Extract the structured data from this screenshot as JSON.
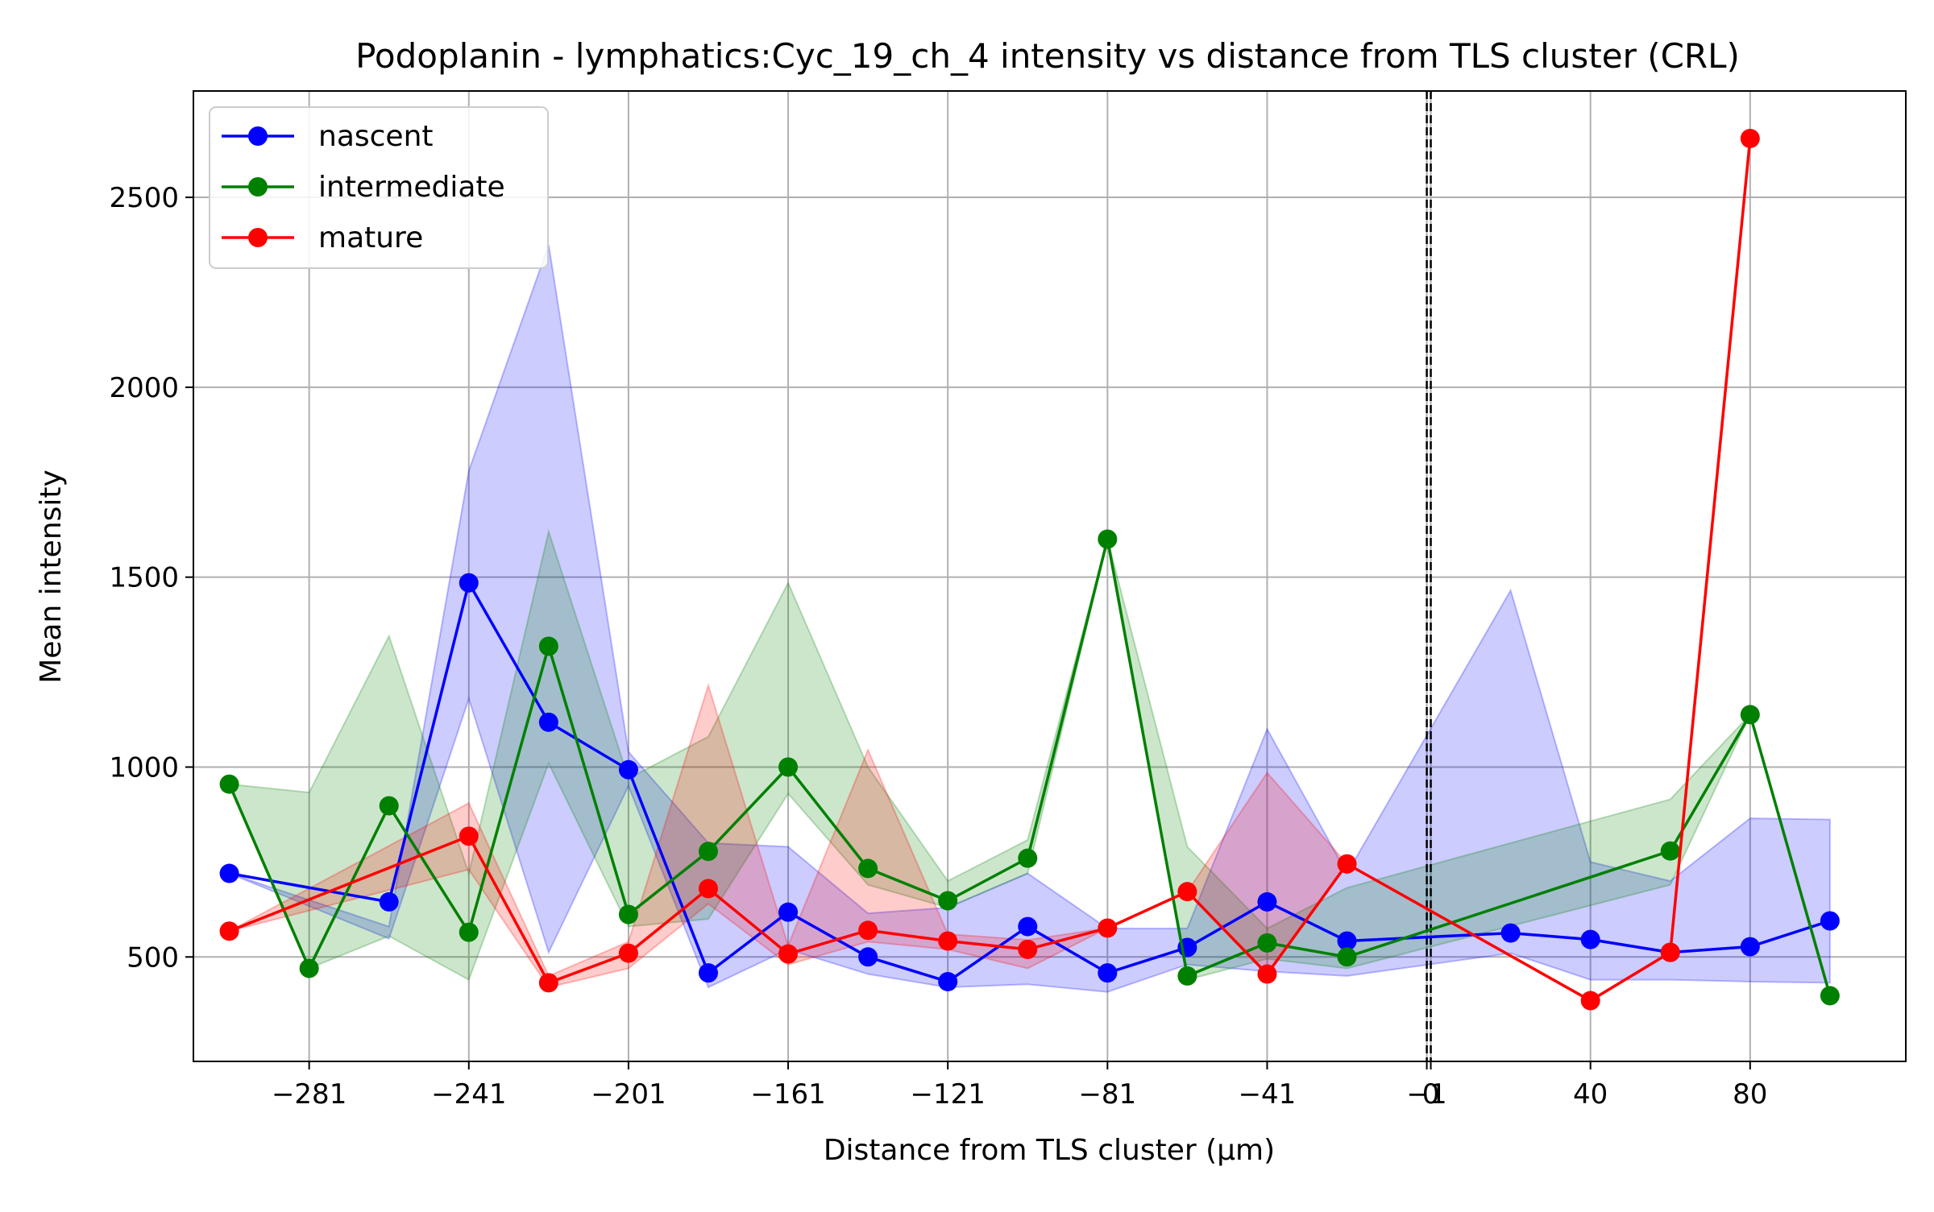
{
  "chart_data": {
    "type": "line",
    "title": "Podoplanin - lymphatics:Cyc_19_ch_4 intensity vs distance from TLS cluster (CRL)",
    "xlabel": "Distance from TLS cluster (μm)",
    "ylabel": "Mean intensity",
    "xlim": [
      -310,
      119
    ],
    "ylim": [
      225,
      2780
    ],
    "x_ticks": [
      -281,
      -241,
      -201,
      -161,
      -121,
      -81,
      -41,
      -1,
      0,
      40,
      80
    ],
    "x_tick_labels": [
      "−281",
      "−241",
      "−201",
      "−161",
      "−121",
      "−81",
      "−41",
      "−1",
      "0",
      "40",
      "80"
    ],
    "y_ticks": [
      500,
      1000,
      1500,
      2000,
      2500
    ],
    "y_tick_labels": [
      "500",
      "1000",
      "1500",
      "2000",
      "2500"
    ],
    "grid": true,
    "legend_position": "top-left",
    "reference_lines": [
      -1,
      0
    ],
    "series": [
      {
        "name": "nascent",
        "color": "#0000ff",
        "x": [
          -301,
          -261,
          -241,
          -221,
          -201,
          -181,
          -161,
          -141,
          -121,
          -101,
          -81,
          -61,
          -41,
          -21,
          20,
          40,
          60,
          80,
          100
        ],
        "values": [
          720,
          645,
          1485,
          1118,
          993,
          458,
          618,
          500,
          435,
          580,
          458,
          525,
          645,
          542,
          563,
          546,
          512,
          527,
          595
        ],
        "upper": [
          720,
          580,
          1780,
          2375,
          1040,
          800,
          790,
          615,
          630,
          720,
          575,
          575,
          1100,
          720,
          1465,
          750,
          700,
          865,
          862
        ],
        "lower": [
          720,
          548,
          1180,
          512,
          950,
          420,
          520,
          455,
          420,
          428,
          408,
          480,
          462,
          450,
          510,
          440,
          440,
          435,
          432
        ]
      },
      {
        "name": "intermediate",
        "color": "#008000",
        "x": [
          -301,
          -281,
          -261,
          -241,
          -221,
          -201,
          -181,
          -161,
          -141,
          -121,
          -101,
          -81,
          -61,
          -41,
          -21,
          60,
          80,
          100
        ],
        "values": [
          955,
          470,
          898,
          565,
          1318,
          612,
          778,
          1000,
          733,
          648,
          760,
          1600,
          450,
          537,
          500,
          779,
          1138,
          398
        ],
        "upper": [
          955,
          933,
          1345,
          720,
          1620,
          970,
          1080,
          1485,
          1000,
          700,
          808,
          1600,
          790,
          575,
          682,
          915,
          1138,
          398
        ],
        "lower": [
          955,
          470,
          555,
          440,
          1010,
          580,
          600,
          930,
          690,
          630,
          720,
          1600,
          440,
          495,
          470,
          690,
          1138,
          398
        ]
      },
      {
        "name": "mature",
        "color": "#ff0000",
        "x": [
          -301,
          -241,
          -221,
          -201,
          -181,
          -161,
          -141,
          -121,
          -101,
          -81,
          -61,
          -41,
          -21,
          40,
          60,
          80
        ],
        "values": [
          568,
          818,
          432,
          510,
          680,
          508,
          570,
          542,
          520,
          576,
          672,
          455,
          745,
          385,
          512,
          2655
        ],
        "upper": [
          568,
          905,
          450,
          540,
          1215,
          530,
          1045,
          560,
          545,
          576,
          672,
          985,
          745,
          385,
          512,
          2655
        ],
        "lower": [
          568,
          730,
          420,
          470,
          640,
          480,
          540,
          520,
          470,
          576,
          672,
          452,
          745,
          385,
          512,
          2655
        ]
      }
    ]
  }
}
